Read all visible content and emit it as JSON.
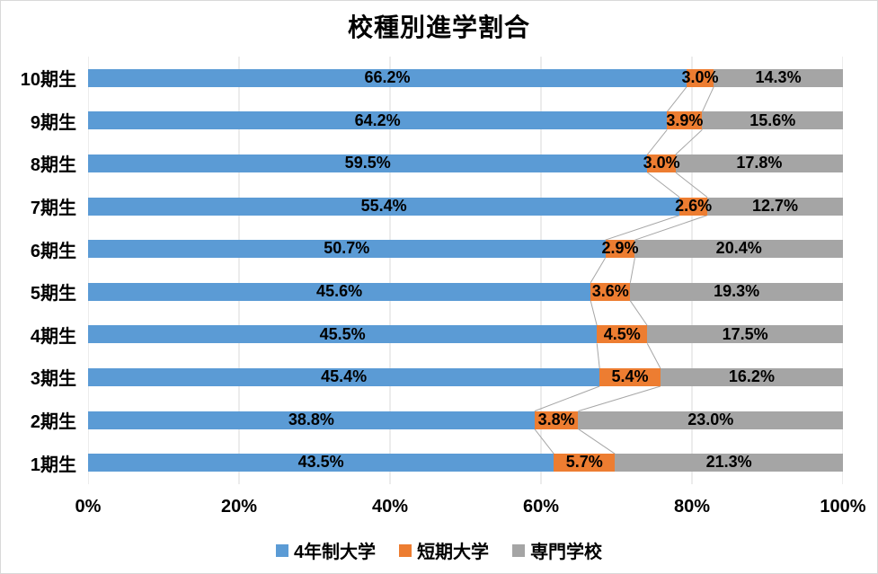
{
  "title": "校種別進学割合",
  "chart_data": {
    "type": "bar",
    "orientation": "horizontal",
    "stacked": true,
    "normalized_to_100_percent": true,
    "title": "校種別進学割合",
    "categories": [
      "10期生",
      "9期生",
      "8期生",
      "7期生",
      "6期生",
      "5期生",
      "4期生",
      "3期生",
      "2期生",
      "1期生"
    ],
    "series": [
      {
        "name": "4年制大学",
        "color": "#5B9BD5",
        "values": [
          66.2,
          64.2,
          59.5,
          55.4,
          50.7,
          45.6,
          45.5,
          45.4,
          38.8,
          43.5
        ]
      },
      {
        "name": "短期大学",
        "color": "#ED7D31",
        "values": [
          3.0,
          3.9,
          3.0,
          2.6,
          2.9,
          3.6,
          4.5,
          5.4,
          3.8,
          5.7
        ]
      },
      {
        "name": "専門学校",
        "color": "#A5A5A5",
        "values": [
          14.3,
          15.6,
          17.8,
          12.7,
          20.4,
          19.3,
          17.5,
          16.2,
          23.0,
          21.3
        ]
      }
    ],
    "data_label_format": "0.0%",
    "x_ticks": [
      "0%",
      "20%",
      "40%",
      "60%",
      "80%",
      "100%"
    ],
    "xlim": [
      0,
      100
    ],
    "grid": true,
    "gridline_color": "#D9D9D9",
    "series_line_color": "#A6A6A6",
    "legend_position": "bottom",
    "label_color": "#000000"
  }
}
